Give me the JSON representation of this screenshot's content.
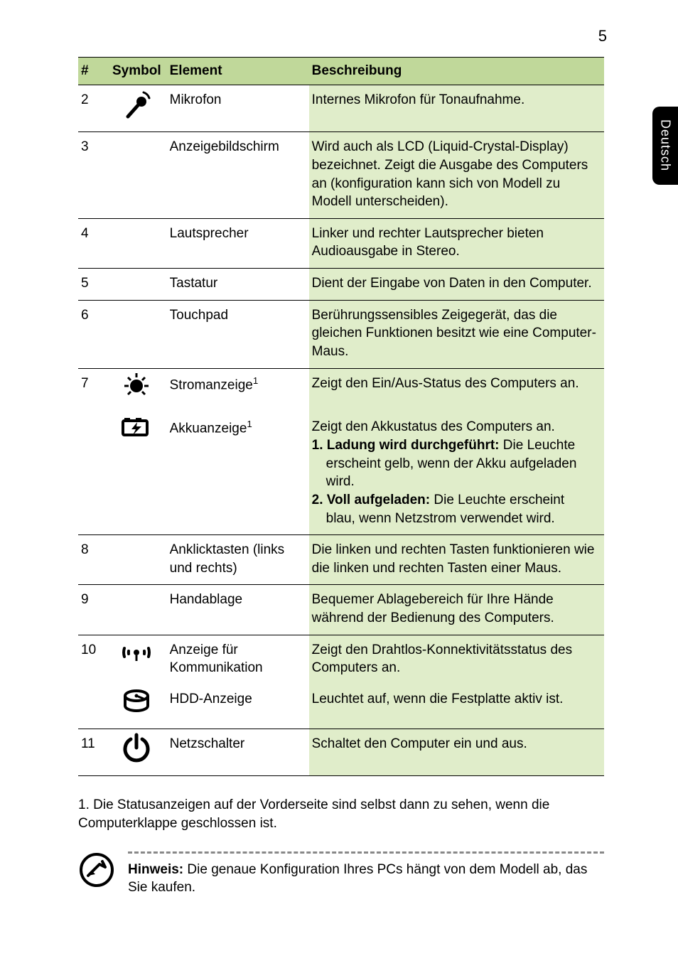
{
  "page_number": "5",
  "side_tab": "Deutsch",
  "colors": {
    "header_bg": "#c0d89a",
    "desc_bg": "#e0edca",
    "border": "#000000",
    "text": "#000000",
    "dotted": "#888888"
  },
  "table": {
    "headers": {
      "num": "#",
      "symbol": "Symbol",
      "element": "Element",
      "desc": "Beschreibung"
    },
    "rows": [
      {
        "num": "2",
        "icon": "mic",
        "element": "Mikrofon",
        "desc": "Internes Mikrofon für Tonaufnahme."
      },
      {
        "num": "3",
        "icon": "",
        "element": "Anzeigebildschirm",
        "desc": "Wird auch als LCD (Liquid-Crystal-Display) bezeichnet. Zeigt die Ausgabe des Computers an (konfiguration kann sich von Modell zu Modell unterscheiden)."
      },
      {
        "num": "4",
        "icon": "",
        "element": "Lautsprecher",
        "desc": "Linker und rechter Lautsprecher bieten Audioausgabe in Stereo."
      },
      {
        "num": "5",
        "icon": "",
        "element": "Tastatur",
        "desc": "Dient der Eingabe von Daten in den Computer."
      },
      {
        "num": "6",
        "icon": "",
        "element": "Touchpad",
        "desc": "Berührungssensibles Zeigegerät, das die gleichen Funktionen besitzt wie eine Computer-Maus."
      },
      {
        "num": "7",
        "icon": "power-led",
        "element_html": "Stromanzeige<sup>1</sup>",
        "element": "Stromanzeige1",
        "desc": "Zeigt den Ein/Aus-Status des Computers an."
      },
      {
        "num": "",
        "icon": "battery",
        "element_html": "Akkuanzeige<sup>1</sup>",
        "element": "Akkuanzeige1",
        "desc_html": "Zeigt den Akkustatus des Computers an.<br><span class='bold'>1. Ladung wird durchgeführt:</span> Die Leuchte<br><span class='indent'>erscheint gelb, wenn der Akku aufgeladen wird.</span><span class='bold'>2. Voll aufgeladen:</span> Die Leuchte erscheint<br><span class='indent'>blau, wenn Netzstrom verwendet wird.</span>",
        "no_top": true
      },
      {
        "num": "8",
        "icon": "",
        "element": "Anklicktasten (links und rechts)",
        "desc": "Die linken und rechten Tasten funktionieren wie die linken und rechten Tasten einer Maus."
      },
      {
        "num": "9",
        "icon": "",
        "element": "Handablage",
        "desc": "Bequemer Ablagebereich für Ihre Hände während der Bedienung des Computers."
      },
      {
        "num": "10",
        "icon": "wifi",
        "element": "Anzeige für Kommunikation",
        "desc": "Zeigt den Drahtlos-Konnektivitätsstatus des Computers an."
      },
      {
        "num": "",
        "icon": "hdd",
        "element": "HDD-Anzeige",
        "desc": "Leuchtet auf, wenn die Festplatte aktiv ist.",
        "no_top": true
      },
      {
        "num": "11",
        "icon": "power",
        "element": "Netzschalter",
        "desc": "Schaltet den Computer ein und aus.",
        "last": true
      }
    ]
  },
  "footnote": "1. Die Statusanzeigen auf der Vorderseite sind selbst dann zu sehen, wenn die Computerklappe geschlossen ist.",
  "note": {
    "label": "Hinweis:",
    "text": " Die genaue Konfiguration Ihres PCs hängt von dem Modell ab, das Sie kaufen."
  }
}
